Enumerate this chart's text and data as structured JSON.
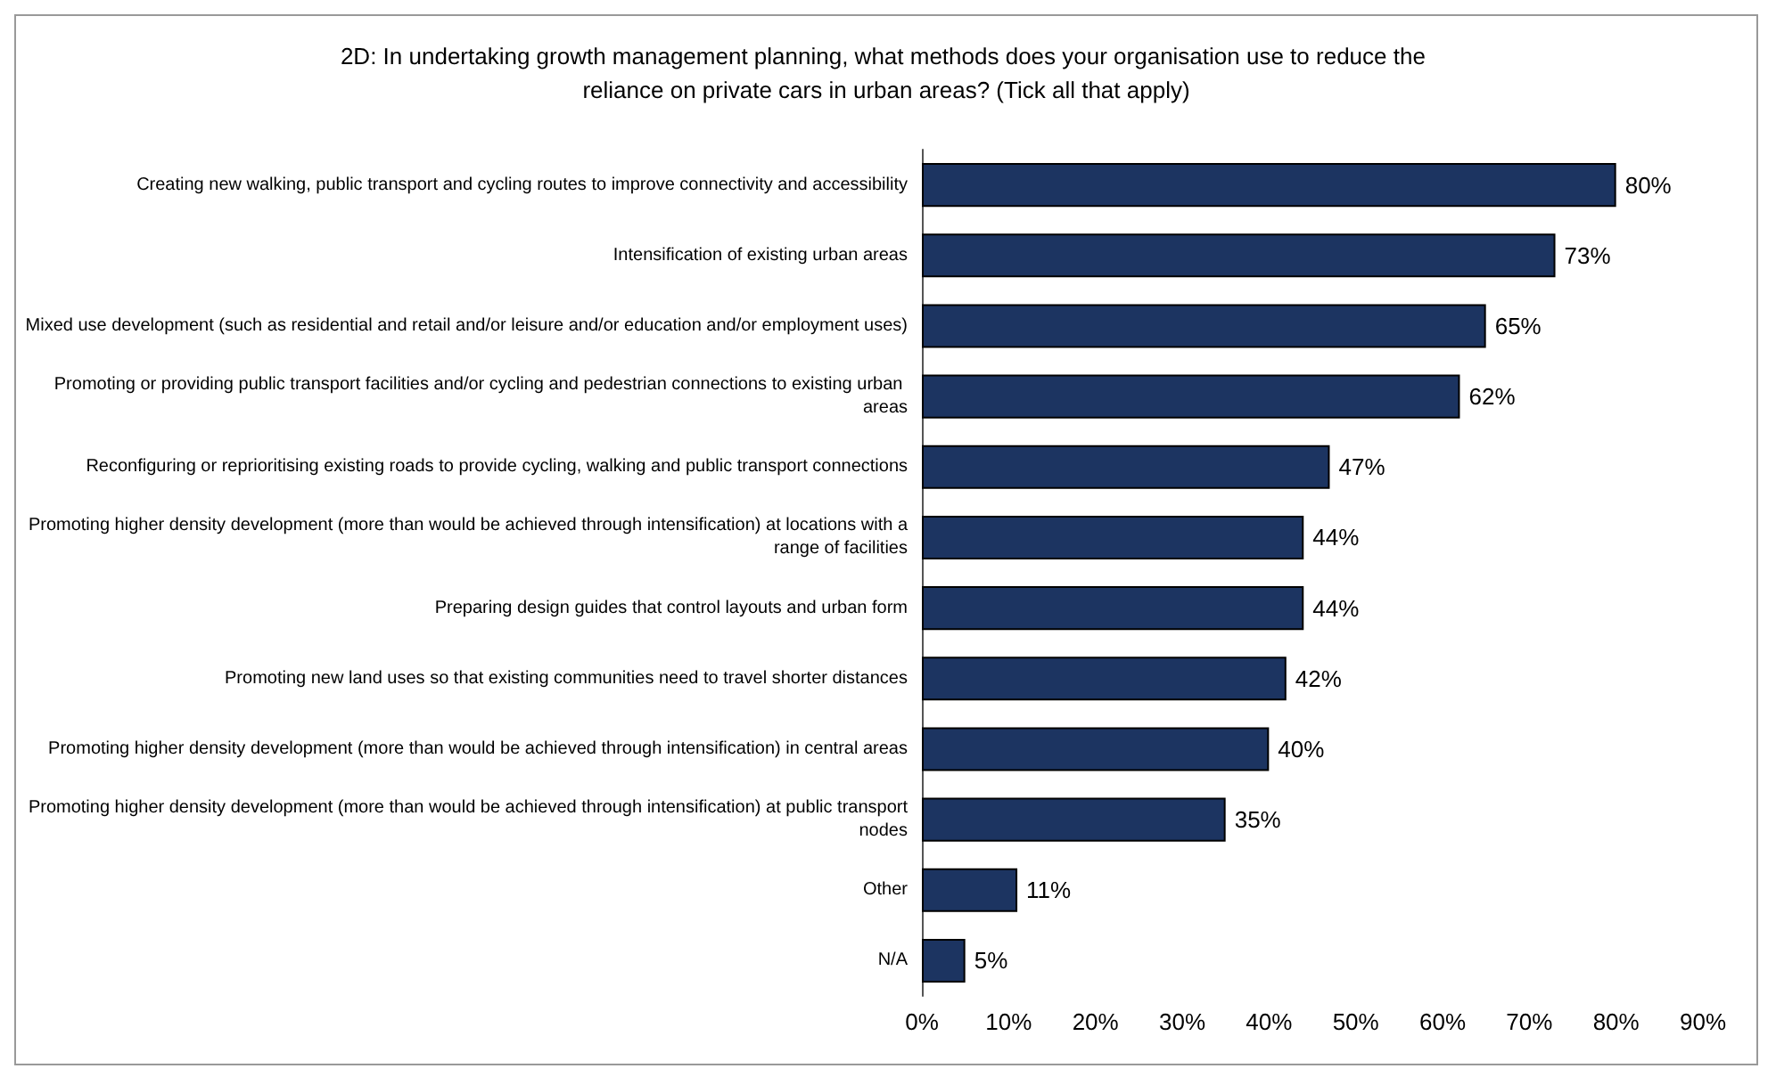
{
  "chart_data": {
    "type": "bar",
    "orientation": "horizontal",
    "title": "2D: In undertaking growth management planning, what methods does your organisation use to reduce the reliance on private cars in urban areas? (Tick all that apply)",
    "categories": [
      "Creating new walking, public transport and cycling routes to improve connectivity and accessibility",
      "Intensification of existing urban areas",
      "Mixed use development (such as residential and retail and/or leisure and/or education and/or employment uses)",
      "Promoting or providing public transport facilities and/or cycling and pedestrian connections to existing urban areas",
      "Reconfiguring or reprioritising existing roads to provide cycling, walking and public transport connections",
      "Promoting higher density development (more than would be achieved through intensification) at locations with a range of facilities",
      "Preparing design guides that control layouts and urban form",
      "Promoting new land uses so that existing communities need to travel shorter distances",
      "Promoting higher density development (more than would be achieved through intensification) in central areas",
      "Promoting higher density development (more than would be achieved through intensification) at public transport nodes",
      "Other",
      "N/A"
    ],
    "values": [
      80,
      73,
      65,
      62,
      47,
      44,
      44,
      42,
      40,
      35,
      11,
      5
    ],
    "value_labels": [
      "80%",
      "73%",
      "65%",
      "62%",
      "47%",
      "44%",
      "44%",
      "42%",
      "40%",
      "35%",
      "11%",
      "5%"
    ],
    "color": "#1c3461",
    "xlim": [
      0,
      90
    ],
    "xticks": [
      {
        "value": 0,
        "label": "0%"
      },
      {
        "value": 10,
        "label": "10%"
      },
      {
        "value": 20,
        "label": "20%"
      },
      {
        "value": 30,
        "label": "30%"
      },
      {
        "value": 40,
        "label": "40%"
      },
      {
        "value": 50,
        "label": "50%"
      },
      {
        "value": 60,
        "label": "60%"
      },
      {
        "value": 70,
        "label": "70%"
      },
      {
        "value": 80,
        "label": "80%"
      },
      {
        "value": 90,
        "label": "90%"
      }
    ],
    "grid": false
  }
}
